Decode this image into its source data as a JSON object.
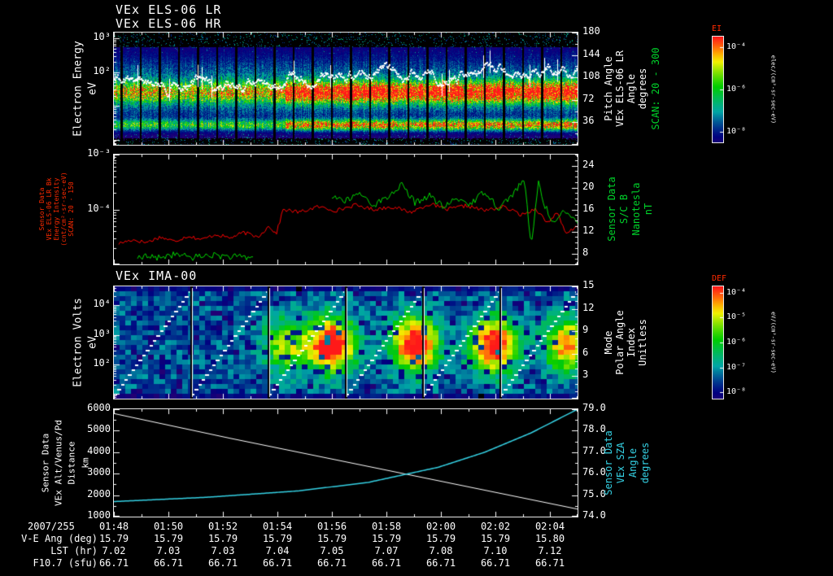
{
  "panels": {
    "els": {
      "titles": [
        "VEx ELS-06 LR",
        "VEx ELS-06 HR"
      ],
      "left_axis_label": [
        "Electron Energy",
        "eV"
      ],
      "left_tick_labels": [
        {
          "text": "10³",
          "v": 1000
        },
        {
          "text": "10²",
          "v": 100
        }
      ],
      "right_tick_labels": [
        {
          "text": "180",
          "v": 180
        },
        {
          "text": "144",
          "v": 144
        },
        {
          "text": "108",
          "v": 108
        },
        {
          "text": "72",
          "v": 72
        },
        {
          "text": "36",
          "v": 36
        }
      ],
      "right_axis_label": [
        "Pitch Angle",
        "VEx ELS-06 LR",
        "Angle",
        "degrees"
      ],
      "right_axis_scan": "SCAN: 20 - 300"
    },
    "bfield": {
      "left_label_lines": [
        "Sensor Data",
        "VEx ELS-06 LR Bk",
        "Energy Intensity",
        "(cnt/cm²-sr-sec-eV)",
        "SCAN: 20 - 150"
      ],
      "left_tick_labels": [
        {
          "text": "10⁻³",
          "v": -3
        },
        {
          "text": "10⁻⁴",
          "v": -4
        }
      ],
      "right_tick_labels": [
        {
          "text": "24",
          "v": 24
        },
        {
          "text": "20",
          "v": 20
        },
        {
          "text": "16",
          "v": 16
        },
        {
          "text": "12",
          "v": 12
        },
        {
          "text": "8",
          "v": 8
        }
      ],
      "right_axis_label": [
        "Sensor Data",
        "S/C B",
        "Nanotesla",
        "nT"
      ]
    },
    "ima": {
      "title": "VEx IMA-00",
      "left_axis_label": [
        "Electron Volts",
        "eV"
      ],
      "left_tick_labels": [
        {
          "text": "10⁴",
          "v": 10000
        },
        {
          "text": "10³",
          "v": 1000
        },
        {
          "text": "10²",
          "v": 100
        }
      ],
      "right_tick_labels": [
        {
          "text": "15",
          "v": 15
        },
        {
          "text": "12",
          "v": 12
        },
        {
          "text": "9",
          "v": 9
        },
        {
          "text": "6",
          "v": 6
        },
        {
          "text": "3",
          "v": 3
        }
      ],
      "right_axis_label": [
        "Mode",
        "Polar Angle",
        "Index",
        "Unitless"
      ]
    },
    "traj": {
      "left_label_lines": [
        "Sensor Data",
        "VEx Alt/Venus/Pd",
        "Distance",
        "km"
      ],
      "left_tick_labels": [
        {
          "text": "6000",
          "v": 6000
        },
        {
          "text": "5000",
          "v": 5000
        },
        {
          "text": "4000",
          "v": 4000
        },
        {
          "text": "3000",
          "v": 3000
        },
        {
          "text": "2000",
          "v": 2000
        },
        {
          "text": "1000",
          "v": 1000
        }
      ],
      "right_tick_labels": [
        {
          "text": "79.0",
          "v": 79
        },
        {
          "text": "78.0",
          "v": 78
        },
        {
          "text": "77.0",
          "v": 77
        },
        {
          "text": "76.0",
          "v": 76
        },
        {
          "text": "75.0",
          "v": 75
        },
        {
          "text": "74.0",
          "v": 74
        }
      ],
      "right_axis_label": [
        "Sensor Data",
        "VEx SZA",
        "Angle",
        "degrees"
      ]
    }
  },
  "colorbars": [
    {
      "title": "EI",
      "lim_log10": [
        -8.5,
        -3.5
      ],
      "ticks": [
        {
          "text": "10⁻⁴",
          "v": -4
        },
        {
          "text": "10⁻⁶",
          "v": -6
        },
        {
          "text": "10⁻⁸",
          "v": -8
        }
      ],
      "side_label": "elec/(cm²-sr-sec-eV)"
    },
    {
      "title": "DEF",
      "lim_log10": [
        -8.25,
        -3.75
      ],
      "ticks": [
        {
          "text": "10⁻⁴",
          "v": -4
        },
        {
          "text": "10⁻⁵",
          "v": -5
        },
        {
          "text": "10⁻⁶",
          "v": -6
        },
        {
          "text": "10⁻⁷",
          "v": -7
        },
        {
          "text": "10⁻⁸",
          "v": -8
        }
      ],
      "side_label": "eV/(cm²-sr-sec-eV)"
    }
  ],
  "footer": {
    "date": "2007/255",
    "time_labels": [
      "01:48",
      "01:50",
      "01:52",
      "01:54",
      "01:56",
      "01:58",
      "02:00",
      "02:02",
      "02:04"
    ],
    "rows": [
      {
        "label": "V-E Ang (deg)",
        "values": [
          "15.79",
          "15.79",
          "15.79",
          "15.79",
          "15.79",
          "15.79",
          "15.79",
          "15.79",
          "15.80"
        ]
      },
      {
        "label": "LST (hr)",
        "values": [
          "7.02",
          "7.03",
          "7.03",
          "7.04",
          "7.05",
          "7.07",
          "7.08",
          "7.10",
          "7.12"
        ]
      },
      {
        "label": "F10.7 (sfu)",
        "values": [
          "66.71",
          "66.71",
          "66.71",
          "66.71",
          "66.71",
          "66.71",
          "66.71",
          "66.71",
          "66.71"
        ]
      }
    ]
  },
  "chart_data": [
    {
      "type": "heatmap",
      "id": "els_electron_energy_spectrogram",
      "title": "VEx ELS-06 LR / VEx ELS-06 HR",
      "ylabel": "Electron Energy (eV)",
      "yscale": "log",
      "ylim": [
        0.7,
        1500
      ],
      "y_ticks": [
        1000,
        100
      ],
      "right_axis": {
        "label": "Pitch Angle VEx ELS-06 LR (degrees), SCAN: 20 - 300",
        "lim": [
          0,
          180
        ],
        "ticks": [
          180,
          144,
          108,
          72,
          36
        ]
      },
      "time": {
        "date": "2007/255",
        "start": "01:48",
        "total_min": 17,
        "tick_labels": [
          "01:48",
          "01:50",
          "01:52",
          "01:54",
          "01:56",
          "01:58",
          "02:00",
          "02:02",
          "02:04"
        ]
      },
      "intensity_units": "elec/(cm²-sr-sec-eV)",
      "clim_log10": [
        -8.5,
        -3.5
      ],
      "overlay": "white mean-energy trace",
      "features": {
        "transition_t": 0.37,
        "n_scan_gaps": 24,
        "bands": [
          {
            "center_frac": 0.53,
            "pre_amp": 0.5,
            "post_amp": 0.95
          },
          {
            "center_frac": 0.82,
            "pre_amp": 0.45,
            "post_amp": 0.8
          }
        ]
      }
    },
    {
      "type": "line",
      "id": "intensity_and_magnetic_field",
      "left_ylim_log10": [
        -5,
        -3
      ],
      "right_ylim": [
        6,
        26
      ],
      "series": [
        {
          "name": "VEx ELS-06 LR Bk Energy Intensity",
          "color": "#ff0000",
          "axis": "left",
          "yscale": "log",
          "units": "cnt/cm²-sr-sec-eV",
          "y_is": "log10",
          "x_frac": [
            0.01,
            0.04,
            0.07,
            0.1,
            0.13,
            0.16,
            0.19,
            0.22,
            0.25,
            0.28,
            0.31,
            0.335,
            0.35,
            0.365,
            0.4,
            0.44,
            0.48,
            0.52,
            0.56,
            0.6,
            0.64,
            0.68,
            0.72,
            0.76,
            0.8,
            0.84,
            0.88,
            0.91,
            0.935,
            0.955,
            0.975,
            1.0
          ],
          "y": [
            -4.62,
            -4.55,
            -4.6,
            -4.5,
            -4.58,
            -4.48,
            -4.55,
            -4.45,
            -4.52,
            -4.42,
            -4.5,
            -4.3,
            -4.45,
            -4.0,
            -4.05,
            -3.95,
            -4.02,
            -3.92,
            -4.0,
            -3.95,
            -4.05,
            -3.9,
            -4.0,
            -3.93,
            -4.02,
            -3.95,
            -4.1,
            -3.98,
            -4.25,
            -4.05,
            -4.45,
            -4.3
          ]
        },
        {
          "name": "S/C B",
          "color": "#00d800",
          "axis": "right",
          "units": "nT",
          "segments": [
            {
              "x_frac": [
                0.05,
                0.09,
                0.13,
                0.17,
                0.21,
                0.25,
                0.3
              ],
              "y": [
                7.5,
                7.2,
                7.8,
                7.3,
                7.7,
                7.4,
                7.2
              ]
            },
            {
              "x_frac": [
                0.47,
                0.5,
                0.53,
                0.56,
                0.59,
                0.62,
                0.65,
                0.68,
                0.71,
                0.74,
                0.77,
                0.8,
                0.83,
                0.86,
                0.885,
                0.9,
                0.915,
                0.93,
                0.95,
                0.97,
                1.0
              ],
              "y": [
                18.5,
                17.5,
                19.0,
                16.8,
                18.2,
                20.5,
                17.2,
                18.6,
                16.4,
                18.0,
                17.0,
                19.4,
                16.2,
                18.8,
                21.5,
                9.0,
                21.0,
                16.5,
                13.5,
                15.5,
                14.0
              ]
            }
          ]
        }
      ]
    },
    {
      "type": "heatmap",
      "id": "ima_ion_spectrogram",
      "title": "VEx IMA-00",
      "ylabel": "Electron Volts (eV)",
      "yscale": "log",
      "ylim": [
        7,
        44000
      ],
      "y_ticks": [
        10000,
        1000,
        100
      ],
      "right_axis": {
        "label": "Mode / Polar Angle / Index (Unitless)",
        "lim": [
          0,
          15
        ],
        "ticks": [
          15,
          12,
          9,
          6,
          3
        ]
      },
      "clim_log10": [
        -8,
        -4
      ],
      "overlay": "white sawtooth elevation-scan trace, 6 cycles",
      "features": {
        "n_cycles": 6,
        "blob_center_frac": 0.52,
        "blobs": [
          {
            "t": 0.37,
            "amp": 0.5
          },
          {
            "t": 0.47,
            "amp": 0.95
          },
          {
            "t": 0.65,
            "amp": 0.9
          },
          {
            "t": 0.82,
            "amp": 0.9
          },
          {
            "t": 0.98,
            "amp": 0.7
          }
        ]
      }
    },
    {
      "type": "line",
      "id": "altitude_and_sza",
      "left_ylim": [
        1000,
        6000
      ],
      "right_ylim": [
        74,
        79
      ],
      "series": [
        {
          "name": "VEx Alt/Venus/Pd Distance",
          "color": "#ffffff",
          "axis": "left",
          "units": "km",
          "x_frac": [
            0,
            0.25,
            0.5,
            0.75,
            1.0
          ],
          "y": [
            5800,
            4650,
            3550,
            2450,
            1350
          ]
        },
        {
          "name": "VEx SZA",
          "color": "#35d2e5",
          "axis": "right",
          "units": "degrees",
          "x_frac": [
            0,
            0.2,
            0.4,
            0.55,
            0.7,
            0.8,
            0.9,
            1.0
          ],
          "y": [
            74.7,
            74.9,
            75.2,
            75.6,
            76.3,
            77.0,
            77.9,
            79.0
          ]
        }
      ]
    }
  ]
}
